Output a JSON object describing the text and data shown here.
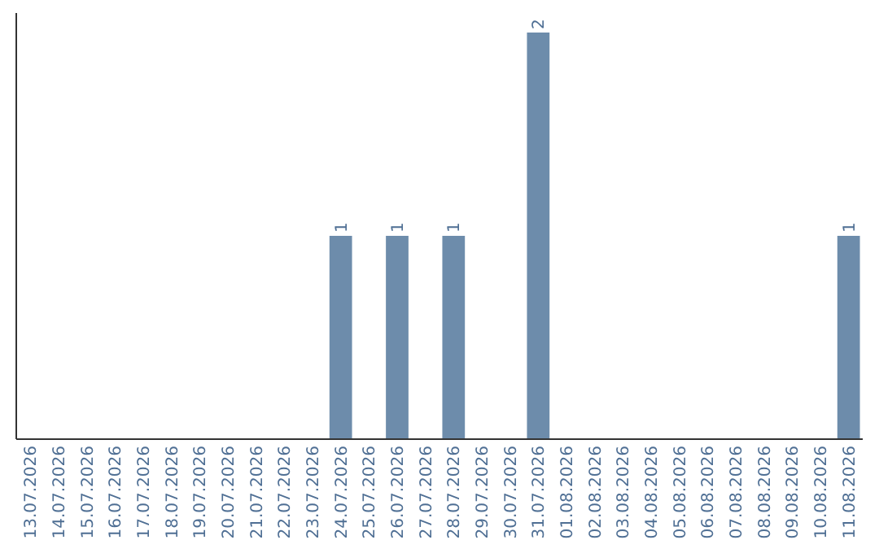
{
  "chart_data": {
    "type": "bar",
    "categories": [
      "13.07.2026",
      "14.07.2026",
      "15.07.2026",
      "16.07.2026",
      "17.07.2026",
      "18.07.2026",
      "19.07.2026",
      "20.07.2026",
      "21.07.2026",
      "22.07.2026",
      "23.07.2026",
      "24.07.2026",
      "25.07.2026",
      "26.07.2026",
      "27.07.2026",
      "28.07.2026",
      "29.07.2026",
      "30.07.2026",
      "31.07.2026",
      "01.08.2026",
      "02.08.2026",
      "03.08.2026",
      "04.08.2026",
      "05.08.2026",
      "06.08.2026",
      "07.08.2026",
      "08.08.2026",
      "09.08.2026",
      "10.08.2026",
      "11.08.2026"
    ],
    "values": [
      0,
      0,
      0,
      0,
      0,
      0,
      0,
      0,
      0,
      0,
      0,
      1,
      0,
      1,
      0,
      1,
      0,
      0,
      2,
      0,
      0,
      0,
      0,
      0,
      0,
      0,
      0,
      0,
      0,
      1
    ],
    "value_labels": [
      null,
      null,
      null,
      null,
      null,
      null,
      null,
      null,
      null,
      null,
      null,
      "1",
      null,
      "1",
      null,
      "1",
      null,
      null,
      "2",
      null,
      null,
      null,
      null,
      null,
      null,
      null,
      null,
      null,
      null,
      "1"
    ],
    "color": "#6d8cab",
    "tick_labels": "x",
    "grid": false,
    "legend": false
  }
}
